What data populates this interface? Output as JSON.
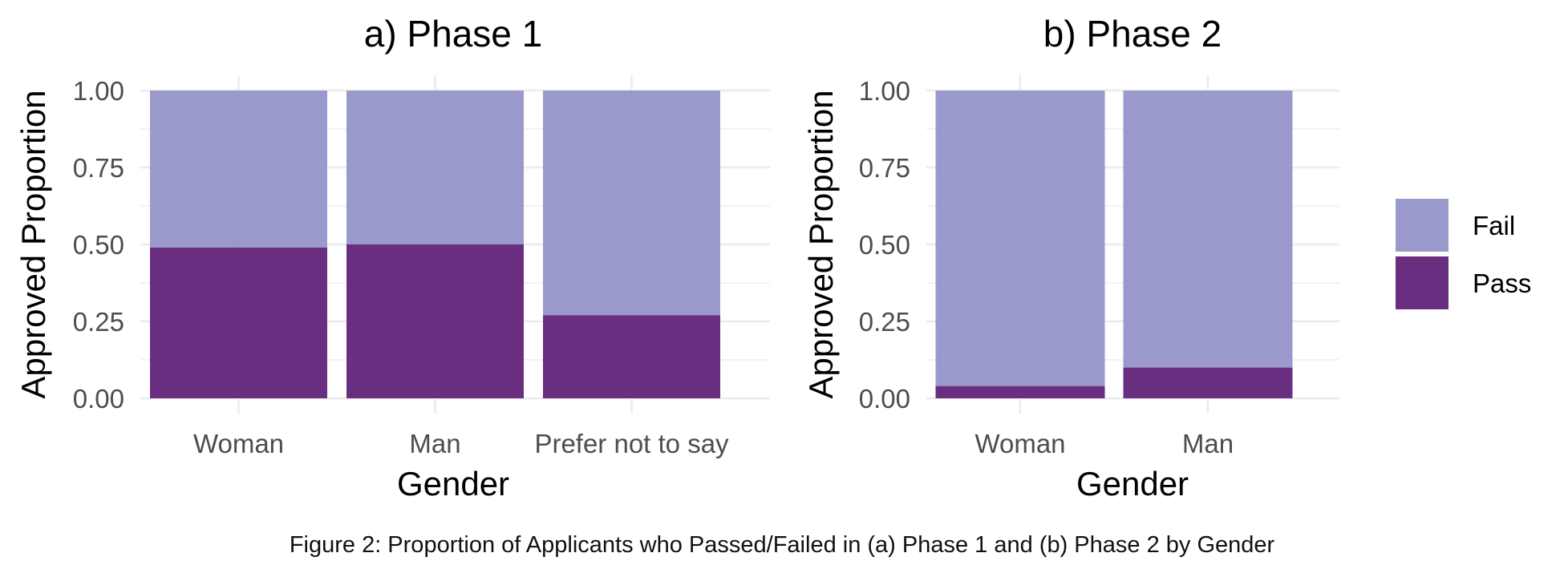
{
  "caption": "Figure 2: Proportion of Applicants who Passed/Failed in (a) Phase 1 and (b) Phase 2 by Gender",
  "colors": {
    "fail": "#9a99cc",
    "pass": "#6a2e80",
    "grid": "#ebebeb",
    "tick_text": "#4d4d4d",
    "title_text": "#000000"
  },
  "legend": {
    "position": "right",
    "items": [
      "Fail",
      "Pass"
    ]
  },
  "chart_data": [
    {
      "type": "bar",
      "stacked": true,
      "title": "a) Phase 1",
      "xlabel": "Gender",
      "ylabel": "Approved Proportion",
      "categories": [
        "Woman",
        "Man",
        "Prefer not to say"
      ],
      "series": [
        {
          "name": "Pass",
          "values": [
            0.49,
            0.5,
            0.27
          ]
        },
        {
          "name": "Fail",
          "values": [
            0.51,
            0.5,
            0.73
          ]
        }
      ],
      "yticks": [
        "0.00",
        "0.25",
        "0.50",
        "0.75",
        "1.00"
      ],
      "ylim": [
        0,
        1
      ],
      "grid": true
    },
    {
      "type": "bar",
      "stacked": true,
      "title": "b) Phase 2",
      "xlabel": "Gender",
      "ylabel": "Approved Proportion",
      "categories": [
        "Woman",
        "Man"
      ],
      "series": [
        {
          "name": "Pass",
          "values": [
            0.04,
            0.1
          ]
        },
        {
          "name": "Fail",
          "values": [
            0.96,
            0.9
          ]
        }
      ],
      "yticks": [
        "0.00",
        "0.25",
        "0.50",
        "0.75",
        "1.00"
      ],
      "ylim": [
        0,
        1
      ],
      "grid": true
    }
  ]
}
